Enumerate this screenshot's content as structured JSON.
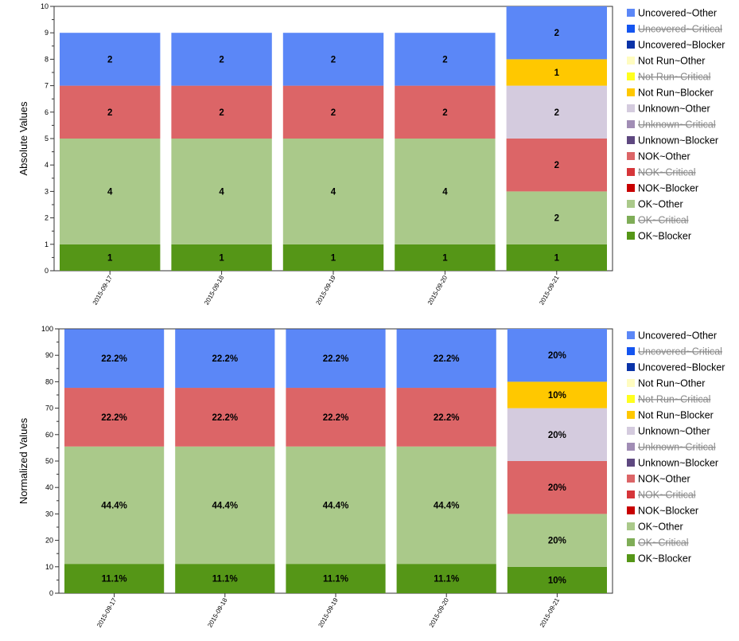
{
  "legend_entries": [
    {
      "name": "Uncovered~Other",
      "color": "#5b87f7",
      "struck": false
    },
    {
      "name": "Uncovered~Critical",
      "color": "#1455f0",
      "struck": true
    },
    {
      "name": "Uncovered~Blocker",
      "color": "#0a33a8",
      "struck": false
    },
    {
      "name": "Not Run~Other",
      "color": "#fffcc0",
      "struck": false
    },
    {
      "name": "Not Run~Critical",
      "color": "#ffff1e",
      "struck": true
    },
    {
      "name": "Not Run~Blocker",
      "color": "#ffc800",
      "struck": false
    },
    {
      "name": "Unknown~Other",
      "color": "#d4cbde",
      "struck": false
    },
    {
      "name": "Unknown~Critical",
      "color": "#a18db5",
      "struck": true
    },
    {
      "name": "Unknown~Blocker",
      "color": "#5e4880",
      "struck": false
    },
    {
      "name": "NOK~Other",
      "color": "#dc6567",
      "struck": false
    },
    {
      "name": "NOK~Critical",
      "color": "#d6363a",
      "struck": true
    },
    {
      "name": "NOK~Blocker",
      "color": "#c80000",
      "struck": false
    },
    {
      "name": "OK~Other",
      "color": "#aac98a",
      "struck": false
    },
    {
      "name": "OK~Critical",
      "color": "#7fad57",
      "struck": true
    },
    {
      "name": "OK~Blocker",
      "color": "#559617",
      "struck": false
    }
  ],
  "chart_data": [
    {
      "type": "bar",
      "stacked": true,
      "ylabel": "Absolute Values",
      "ylim": [
        0,
        10
      ],
      "yticks": [
        0,
        1,
        2,
        3,
        4,
        5,
        6,
        7,
        8,
        9,
        10
      ],
      "categories": [
        "2015-09-17",
        "2015-09-18",
        "2015-09-19",
        "2015-09-20",
        "2015-09-21"
      ],
      "series": [
        {
          "name": "OK~Blocker",
          "values": [
            1,
            1,
            1,
            1,
            1
          ],
          "labels": [
            "1",
            "1",
            "1",
            "1",
            "1"
          ]
        },
        {
          "name": "OK~Other",
          "values": [
            4,
            4,
            4,
            4,
            2
          ],
          "labels": [
            "4",
            "4",
            "4",
            "4",
            "2"
          ]
        },
        {
          "name": "NOK~Other",
          "values": [
            2,
            2,
            2,
            2,
            2
          ],
          "labels": [
            "2",
            "2",
            "2",
            "2",
            "2"
          ]
        },
        {
          "name": "Unknown~Other",
          "values": [
            0,
            0,
            0,
            0,
            2
          ],
          "labels": [
            "",
            "",
            "",
            "",
            "2"
          ]
        },
        {
          "name": "Not Run~Blocker",
          "values": [
            0,
            0,
            0,
            0,
            1
          ],
          "labels": [
            "",
            "",
            "",
            "",
            "1"
          ]
        },
        {
          "name": "Uncovered~Other",
          "values": [
            2,
            2,
            2,
            2,
            2
          ],
          "labels": [
            "2",
            "2",
            "2",
            "2",
            "2"
          ]
        }
      ]
    },
    {
      "type": "bar",
      "stacked": true,
      "ylabel": "Normalized Values",
      "ylim": [
        0,
        100
      ],
      "yticks": [
        0,
        10,
        20,
        30,
        40,
        50,
        60,
        70,
        80,
        90,
        100
      ],
      "categories": [
        "2015-09-17",
        "2015-09-18",
        "2015-09-19",
        "2015-09-20",
        "2015-09-21"
      ],
      "series": [
        {
          "name": "OK~Blocker",
          "values": [
            11.1,
            11.1,
            11.1,
            11.1,
            10
          ],
          "labels": [
            "11.1%",
            "11.1%",
            "11.1%",
            "11.1%",
            "10%"
          ]
        },
        {
          "name": "OK~Other",
          "values": [
            44.4,
            44.4,
            44.4,
            44.4,
            20
          ],
          "labels": [
            "44.4%",
            "44.4%",
            "44.4%",
            "44.4%",
            "20%"
          ]
        },
        {
          "name": "NOK~Other",
          "values": [
            22.2,
            22.2,
            22.2,
            22.2,
            20
          ],
          "labels": [
            "22.2%",
            "22.2%",
            "22.2%",
            "22.2%",
            "20%"
          ]
        },
        {
          "name": "Unknown~Other",
          "values": [
            0,
            0,
            0,
            0,
            20
          ],
          "labels": [
            "",
            "",
            "",
            "",
            "20%"
          ]
        },
        {
          "name": "Not Run~Blocker",
          "values": [
            0,
            0,
            0,
            0,
            10
          ],
          "labels": [
            "",
            "",
            "",
            "",
            "10%"
          ]
        },
        {
          "name": "Uncovered~Other",
          "values": [
            22.2,
            22.2,
            22.2,
            22.2,
            20
          ],
          "labels": [
            "22.2%",
            "22.2%",
            "22.2%",
            "22.2%",
            "20%"
          ]
        }
      ]
    }
  ]
}
